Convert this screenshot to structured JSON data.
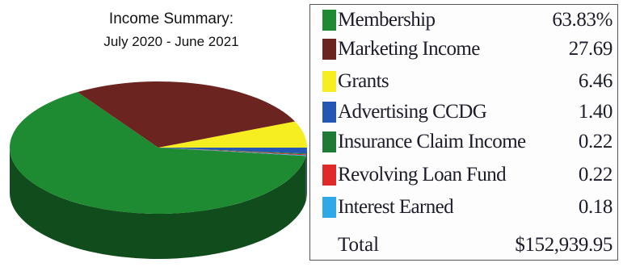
{
  "chart_data": {
    "type": "pie",
    "title": "Income Summary:",
    "subtitle": "July 2020 - June 2021",
    "legend_placement": "right",
    "slices": [
      {
        "name": "Membership",
        "value": 63.83,
        "value_label": "63.83%",
        "color": "#1e8b32"
      },
      {
        "name": "Marketing Income",
        "value": 27.69,
        "value_label": "27.69",
        "color": "#6b2420"
      },
      {
        "name": "Grants",
        "value": 6.46,
        "value_label": "6.46",
        "color": "#f7ee21"
      },
      {
        "name": "Advertising CCDG",
        "value": 1.4,
        "value_label": "1.40",
        "color": "#2456b4"
      },
      {
        "name": "Insurance Claim Income",
        "value": 0.22,
        "value_label": "0.22",
        "color": "#1f7a36"
      },
      {
        "name": "Revolving Loan Fund",
        "value": 0.22,
        "value_label": "0.22",
        "color": "#e02a2a"
      },
      {
        "name": "Interest Earned",
        "value": 0.18,
        "value_label": "0.18",
        "color": "#2ea8e6"
      }
    ],
    "total_label": "Total",
    "total_value": "$152,939.95"
  }
}
